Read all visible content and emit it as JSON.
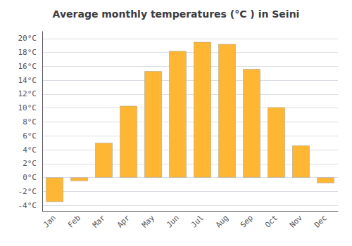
{
  "chart_data": {
    "type": "bar",
    "title": "Average monthly temperatures (°C ) in Seini",
    "categories": [
      "Jan",
      "Feb",
      "Mar",
      "Apr",
      "May",
      "Jun",
      "Jul",
      "Aug",
      "Sep",
      "Oct",
      "Nov",
      "Dec"
    ],
    "values": [
      -3.5,
      -0.5,
      5.0,
      10.3,
      15.3,
      18.2,
      19.5,
      19.2,
      15.6,
      10.1,
      4.6,
      -0.8
    ],
    "color": "#FFB733",
    "ylim": [
      -4.8,
      21.0
    ],
    "yticks": [
      {
        "value": -4,
        "label": "-4°C"
      },
      {
        "value": -2,
        "label": "-2°C"
      },
      {
        "value": 0,
        "label": "0°C"
      },
      {
        "value": 2,
        "label": "2°C"
      },
      {
        "value": 4,
        "label": "4°C"
      },
      {
        "value": 6,
        "label": "6°C"
      },
      {
        "value": 8,
        "label": "8°C"
      },
      {
        "value": 10,
        "label": "10°C"
      },
      {
        "value": 12,
        "label": "12°C"
      },
      {
        "value": 14,
        "label": "14°C"
      },
      {
        "value": 16,
        "label": "16°C"
      },
      {
        "value": 18,
        "label": "18°C"
      },
      {
        "value": 20,
        "label": "20°C"
      }
    ],
    "grid": true
  }
}
